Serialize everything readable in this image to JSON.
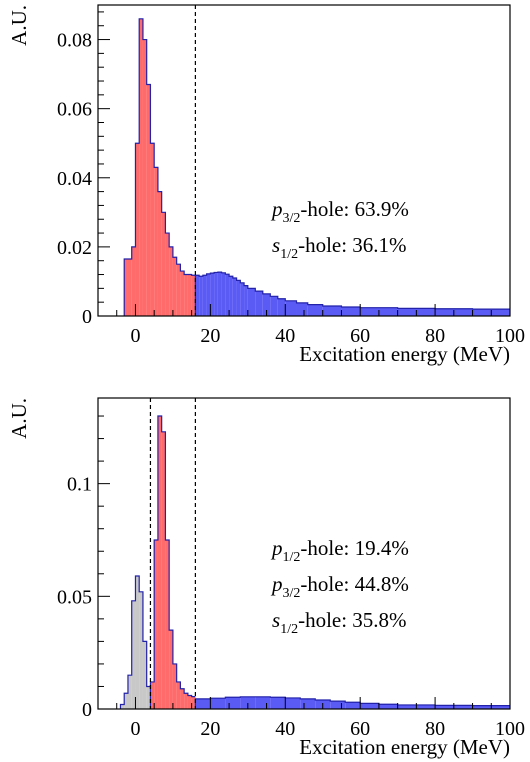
{
  "chart_data": [
    {
      "type": "histogram",
      "xlabel": "Excitation energy (MeV)",
      "ylabel": "A.U.",
      "xlim": [
        -10,
        100
      ],
      "ylim": [
        0,
        0.09
      ],
      "xticks": [
        0,
        20,
        40,
        60,
        80,
        100
      ],
      "xtick_labels": [
        "0",
        "20",
        "40",
        "60",
        "80",
        "100"
      ],
      "yticks": [
        0,
        0.02,
        0.04,
        0.06,
        0.08
      ],
      "ytick_labels": [
        "0",
        "0.02",
        "0.04",
        "0.06",
        "0.08"
      ],
      "grid": false,
      "cut_lines": [
        16
      ],
      "annotations": [
        {
          "sym": "p",
          "sub": "3/2",
          "text": "-hole: 63.9%"
        },
        {
          "sym": "s",
          "sub": "1/2",
          "text": "-hole: 36.1%"
        }
      ],
      "series": [
        {
          "color": "#ff6a6a",
          "outline": "#2222aa",
          "bins": [
            {
              "x0": -3,
              "x1": -2,
              "y": 0.0165
            },
            {
              "x0": -2,
              "x1": -1,
              "y": 0.0165
            },
            {
              "x0": -1,
              "x1": 0,
              "y": 0.02
            },
            {
              "x0": 0,
              "x1": 1,
              "y": 0.05
            },
            {
              "x0": 1,
              "x1": 2,
              "y": 0.086
            },
            {
              "x0": 2,
              "x1": 3,
              "y": 0.08
            },
            {
              "x0": 3,
              "x1": 4,
              "y": 0.067
            },
            {
              "x0": 4,
              "x1": 5,
              "y": 0.05
            },
            {
              "x0": 5,
              "x1": 6,
              "y": 0.043
            },
            {
              "x0": 6,
              "x1": 7,
              "y": 0.036
            },
            {
              "x0": 7,
              "x1": 8,
              "y": 0.03
            },
            {
              "x0": 8,
              "x1": 9,
              "y": 0.024
            },
            {
              "x0": 9,
              "x1": 10,
              "y": 0.02
            },
            {
              "x0": 10,
              "x1": 11,
              "y": 0.017
            },
            {
              "x0": 11,
              "x1": 12,
              "y": 0.015
            },
            {
              "x0": 12,
              "x1": 13,
              "y": 0.013
            },
            {
              "x0": 13,
              "x1": 14,
              "y": 0.012
            },
            {
              "x0": 14,
              "x1": 15,
              "y": 0.012
            },
            {
              "x0": 15,
              "x1": 16,
              "y": 0.0118
            }
          ]
        },
        {
          "color": "#5a5af5",
          "outline": "#2222aa",
          "bins": [
            {
              "x0": 16,
              "x1": 17,
              "y": 0.0118
            },
            {
              "x0": 17,
              "x1": 18,
              "y": 0.0115
            },
            {
              "x0": 18,
              "x1": 19,
              "y": 0.0118
            },
            {
              "x0": 19,
              "x1": 20,
              "y": 0.0122
            },
            {
              "x0": 20,
              "x1": 21,
              "y": 0.0124
            },
            {
              "x0": 21,
              "x1": 22,
              "y": 0.0126
            },
            {
              "x0": 22,
              "x1": 23,
              "y": 0.0127
            },
            {
              "x0": 23,
              "x1": 24,
              "y": 0.0125
            },
            {
              "x0": 24,
              "x1": 25,
              "y": 0.0121
            },
            {
              "x0": 25,
              "x1": 26,
              "y": 0.0115
            },
            {
              "x0": 26,
              "x1": 27,
              "y": 0.011
            },
            {
              "x0": 27,
              "x1": 28,
              "y": 0.0103
            },
            {
              "x0": 28,
              "x1": 29,
              "y": 0.0096
            },
            {
              "x0": 29,
              "x1": 30,
              "y": 0.0088
            },
            {
              "x0": 30,
              "x1": 32,
              "y": 0.008
            },
            {
              "x0": 32,
              "x1": 34,
              "y": 0.0072
            },
            {
              "x0": 34,
              "x1": 36,
              "y": 0.0064
            },
            {
              "x0": 36,
              "x1": 38,
              "y": 0.0057
            },
            {
              "x0": 38,
              "x1": 40,
              "y": 0.005
            },
            {
              "x0": 40,
              "x1": 43,
              "y": 0.0044
            },
            {
              "x0": 43,
              "x1": 46,
              "y": 0.0038
            },
            {
              "x0": 46,
              "x1": 50,
              "y": 0.0033
            },
            {
              "x0": 50,
              "x1": 55,
              "y": 0.0029
            },
            {
              "x0": 55,
              "x1": 60,
              "y": 0.0026
            },
            {
              "x0": 60,
              "x1": 70,
              "y": 0.0024
            },
            {
              "x0": 70,
              "x1": 80,
              "y": 0.0022
            },
            {
              "x0": 80,
              "x1": 90,
              "y": 0.0021
            },
            {
              "x0": 90,
              "x1": 100,
              "y": 0.002
            }
          ]
        }
      ]
    },
    {
      "type": "histogram",
      "xlabel": "Excitation energy (MeV)",
      "ylabel": "A.U.",
      "xlim": [
        -10,
        100
      ],
      "ylim": [
        0,
        0.138
      ],
      "xticks": [
        0,
        20,
        40,
        60,
        80,
        100
      ],
      "xtick_labels": [
        "0",
        "20",
        "40",
        "60",
        "80",
        "100"
      ],
      "yticks": [
        0,
        0.05,
        0.1
      ],
      "ytick_labels": [
        "0",
        "0.05",
        "0.1"
      ],
      "grid": false,
      "cut_lines": [
        4,
        16
      ],
      "annotations": [
        {
          "sym": "p",
          "sub": "1/2",
          "text": "-hole: 19.4%"
        },
        {
          "sym": "p",
          "sub": "3/2",
          "text": "-hole: 44.8%"
        },
        {
          "sym": "s",
          "sub": "1/2",
          "text": "-hole: 35.8%"
        }
      ],
      "series": [
        {
          "color": "#c8c8c8",
          "outline": "#2222aa",
          "bins": [
            {
              "x0": -4,
              "x1": -3,
              "y": 0.002
            },
            {
              "x0": -3,
              "x1": -2,
              "y": 0.007
            },
            {
              "x0": -2,
              "x1": -1,
              "y": 0.015
            },
            {
              "x0": -1,
              "x1": 0,
              "y": 0.048
            },
            {
              "x0": 0,
              "x1": 1,
              "y": 0.059
            },
            {
              "x0": 1,
              "x1": 2,
              "y": 0.052
            },
            {
              "x0": 2,
              "x1": 3,
              "y": 0.03
            },
            {
              "x0": 3,
              "x1": 4,
              "y": 0.01
            }
          ]
        },
        {
          "color": "#ff6a6a",
          "outline": "#2222aa",
          "bins": [
            {
              "x0": 4,
              "x1": 5,
              "y": 0.012
            },
            {
              "x0": 5,
              "x1": 6,
              "y": 0.075
            },
            {
              "x0": 6,
              "x1": 7,
              "y": 0.13
            },
            {
              "x0": 7,
              "x1": 8,
              "y": 0.123
            },
            {
              "x0": 8,
              "x1": 9,
              "y": 0.075
            },
            {
              "x0": 9,
              "x1": 10,
              "y": 0.035
            },
            {
              "x0": 10,
              "x1": 11,
              "y": 0.02
            },
            {
              "x0": 11,
              "x1": 12,
              "y": 0.012
            },
            {
              "x0": 12,
              "x1": 13,
              "y": 0.009
            },
            {
              "x0": 13,
              "x1": 14,
              "y": 0.007
            },
            {
              "x0": 14,
              "x1": 15,
              "y": 0.006
            },
            {
              "x0": 15,
              "x1": 16,
              "y": 0.0055
            }
          ]
        },
        {
          "color": "#5a5af5",
          "outline": "#2222aa",
          "bins": [
            {
              "x0": 16,
              "x1": 20,
              "y": 0.0045
            },
            {
              "x0": 20,
              "x1": 24,
              "y": 0.0048
            },
            {
              "x0": 24,
              "x1": 28,
              "y": 0.0052
            },
            {
              "x0": 28,
              "x1": 32,
              "y": 0.0054
            },
            {
              "x0": 32,
              "x1": 36,
              "y": 0.0054
            },
            {
              "x0": 36,
              "x1": 40,
              "y": 0.0052
            },
            {
              "x0": 40,
              "x1": 44,
              "y": 0.0049
            },
            {
              "x0": 44,
              "x1": 48,
              "y": 0.0045
            },
            {
              "x0": 48,
              "x1": 52,
              "y": 0.004
            },
            {
              "x0": 52,
              "x1": 56,
              "y": 0.0035
            },
            {
              "x0": 56,
              "x1": 60,
              "y": 0.003
            },
            {
              "x0": 60,
              "x1": 65,
              "y": 0.0025
            },
            {
              "x0": 65,
              "x1": 70,
              "y": 0.0021
            },
            {
              "x0": 70,
              "x1": 80,
              "y": 0.0018
            },
            {
              "x0": 80,
              "x1": 90,
              "y": 0.0016
            },
            {
              "x0": 90,
              "x1": 100,
              "y": 0.0015
            }
          ]
        }
      ]
    }
  ]
}
